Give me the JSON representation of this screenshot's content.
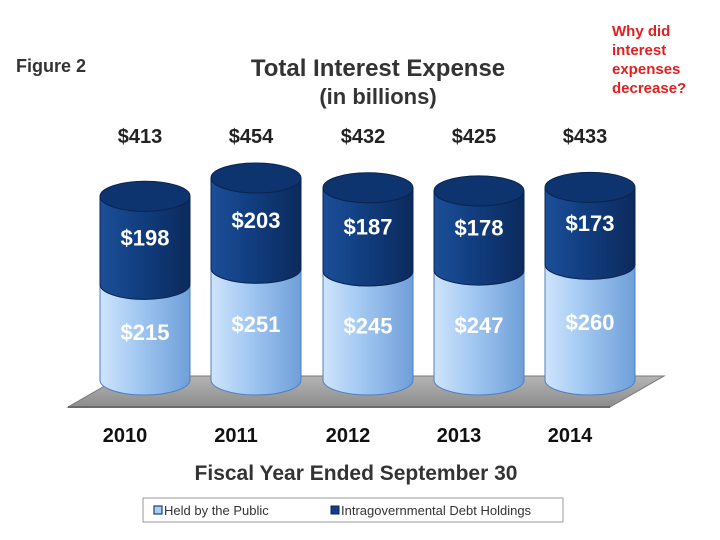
{
  "figure_label": "Figure 2",
  "question": [
    "Why did",
    "interest",
    "expenses",
    "decrease?"
  ],
  "chart_data": {
    "type": "bar",
    "stacked": true,
    "title": "Total Interest Expense",
    "subtitle": "(in billions)",
    "xlabel": "Fiscal Year Ended September 30",
    "ylabel": "",
    "categories": [
      "2010",
      "2011",
      "2012",
      "2013",
      "2014"
    ],
    "series": [
      {
        "name": "Held by the Public",
        "values": [
          215,
          251,
          245,
          247,
          260
        ],
        "labels": [
          "$215",
          "$251",
          "$245",
          "$247",
          "$260"
        ],
        "color": "#a9cdf4"
      },
      {
        "name": "Intragovernmental Debt Holdings",
        "values": [
          198,
          203,
          187,
          178,
          173
        ],
        "labels": [
          "$198",
          "$203",
          "$187",
          "$178",
          "$173"
        ],
        "color": "#123f82"
      }
    ],
    "totals": [
      "$413",
      "$454",
      "$432",
      "$425",
      "$433"
    ],
    "legend": [
      "Held by the Public",
      "Intragovernmental Debt Holdings"
    ],
    "legend_position": "bottom"
  }
}
